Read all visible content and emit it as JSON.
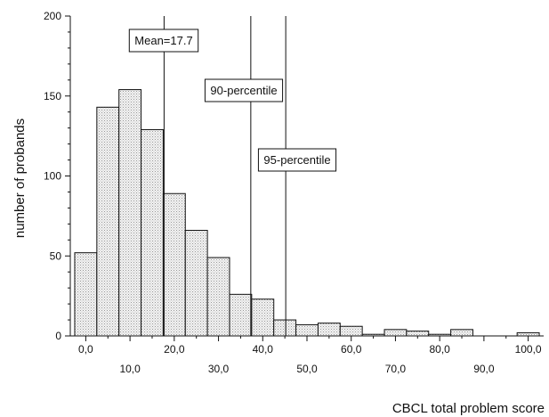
{
  "chart_data": {
    "type": "bar",
    "xlabel": "CBCL total problem score",
    "ylabel": "number of probands",
    "xlim": [
      -3.5,
      103.5
    ],
    "ylim": [
      0,
      200
    ],
    "bin_width": 5,
    "x_ticks": [
      {
        "value": 0,
        "label": "0,0"
      },
      {
        "value": 10,
        "label": "10,0"
      },
      {
        "value": 20,
        "label": "20,0"
      },
      {
        "value": 30,
        "label": "30,0"
      },
      {
        "value": 40,
        "label": "40,0"
      },
      {
        "value": 50,
        "label": "50,0"
      },
      {
        "value": 60,
        "label": "60,0"
      },
      {
        "value": 70,
        "label": "70,0"
      },
      {
        "value": 80,
        "label": "80,0"
      },
      {
        "value": 90,
        "label": "90,0"
      },
      {
        "value": 100,
        "label": "100,0"
      }
    ],
    "y_ticks": [
      0,
      50,
      100,
      150,
      200
    ],
    "bins": [
      {
        "x": 0,
        "value": 52
      },
      {
        "x": 5,
        "value": 143
      },
      {
        "x": 10,
        "value": 154
      },
      {
        "x": 15,
        "value": 129
      },
      {
        "x": 20,
        "value": 89
      },
      {
        "x": 25,
        "value": 66
      },
      {
        "x": 30,
        "value": 49
      },
      {
        "x": 35,
        "value": 26
      },
      {
        "x": 40,
        "value": 23
      },
      {
        "x": 45,
        "value": 10
      },
      {
        "x": 50,
        "value": 7
      },
      {
        "x": 55,
        "value": 8
      },
      {
        "x": 60,
        "value": 6
      },
      {
        "x": 65,
        "value": 1
      },
      {
        "x": 70,
        "value": 4
      },
      {
        "x": 75,
        "value": 3
      },
      {
        "x": 80,
        "value": 1
      },
      {
        "x": 85,
        "value": 4
      },
      {
        "x": 90,
        "value": 0
      },
      {
        "x": 95,
        "value": 0
      },
      {
        "x": 100,
        "value": 2
      }
    ],
    "reference_lines": [
      {
        "x": 17.7,
        "label": "Mean=17.7"
      },
      {
        "x": 37.3,
        "label": "90-percentile"
      },
      {
        "x": 45.2,
        "label": "95-percentile"
      }
    ],
    "grid": false,
    "legend": "none"
  }
}
